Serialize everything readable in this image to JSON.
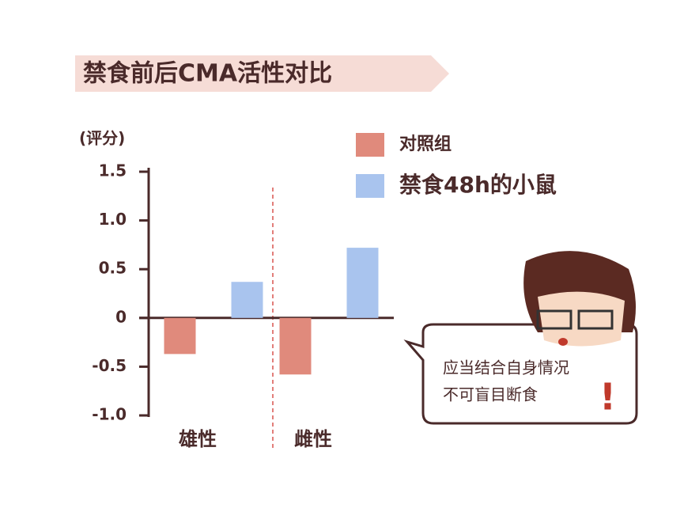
{
  "chart_data": {
    "type": "bar",
    "title": "禁食前后CMA活性对比",
    "y_label": "(评分)",
    "categories": [
      "雄性",
      "雌性"
    ],
    "series": [
      {
        "name": "对照组",
        "color": "#e08a7c",
        "values": [
          -0.37,
          -0.58
        ]
      },
      {
        "name": "禁食48h的小鼠",
        "color": "#a9c4ee",
        "values": [
          0.37,
          0.72
        ]
      }
    ],
    "ylim": [
      -1.0,
      1.5
    ],
    "yticks": [
      {
        "value": -1,
        "label": "-1.0"
      },
      -0.5,
      0,
      0.5,
      {
        "value": 1,
        "label": "1.0"
      },
      1.5
    ],
    "annotations": [
      "应当结合自身情况",
      "不可盲目断食",
      "!"
    ]
  }
}
